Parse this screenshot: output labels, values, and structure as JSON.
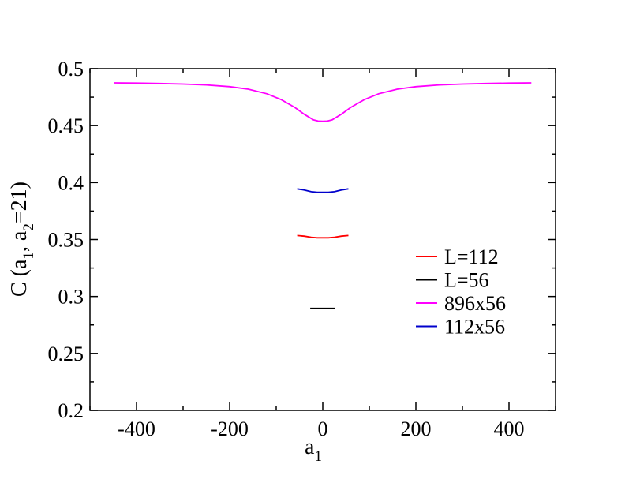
{
  "chart_data": {
    "type": "line",
    "xlabel": "a",
    "xlabel_sub": "1",
    "ylabel_parts": [
      "C (a",
      "1",
      ", a",
      "2",
      "=21)"
    ],
    "xlim": [
      -500,
      500
    ],
    "ylim": [
      0.2,
      0.5
    ],
    "xticks": [
      -400,
      -200,
      0,
      200,
      400
    ],
    "xtick_labels": [
      "-400",
      "-200",
      "0",
      "200",
      "400"
    ],
    "yticks": [
      0.2,
      0.25,
      0.3,
      0.35,
      0.4,
      0.45,
      0.5
    ],
    "ytick_labels": [
      "0.2",
      "0.25",
      "0.3",
      "0.35",
      "0.4",
      "0.45",
      "0.5"
    ],
    "grid": false,
    "legend_position": "lower-right",
    "series": [
      {
        "name": "L=112",
        "color": "#ff0000",
        "x": [
          -55,
          -40,
          -25,
          -12,
          0,
          12,
          25,
          40,
          55
        ],
        "y": [
          0.3535,
          0.353,
          0.352,
          0.3515,
          0.3515,
          0.3515,
          0.352,
          0.353,
          0.3535
        ]
      },
      {
        "name": "L=56",
        "color": "#000000",
        "x": [
          -27,
          -13,
          0,
          13,
          27
        ],
        "y": [
          0.2895,
          0.2895,
          0.2895,
          0.2895,
          0.2895
        ]
      },
      {
        "name": "896x56",
        "color": "#ff00ff",
        "x": [
          -448,
          -400,
          -350,
          -300,
          -250,
          -200,
          -160,
          -120,
          -90,
          -60,
          -40,
          -20,
          -10,
          0,
          10,
          20,
          40,
          60,
          90,
          120,
          160,
          200,
          250,
          300,
          350,
          400,
          448
        ],
        "y": [
          0.4875,
          0.4873,
          0.487,
          0.4865,
          0.4857,
          0.4842,
          0.482,
          0.478,
          0.473,
          0.466,
          0.46,
          0.455,
          0.454,
          0.4538,
          0.454,
          0.455,
          0.46,
          0.466,
          0.473,
          0.478,
          0.482,
          0.4842,
          0.4857,
          0.4865,
          0.487,
          0.4873,
          0.4875
        ]
      },
      {
        "name": "112x56",
        "color": "#0000cc",
        "x": [
          -55,
          -40,
          -25,
          -12,
          0,
          12,
          25,
          40,
          55
        ],
        "y": [
          0.3945,
          0.3935,
          0.392,
          0.3915,
          0.3915,
          0.3915,
          0.392,
          0.3935,
          0.3945
        ]
      }
    ]
  }
}
